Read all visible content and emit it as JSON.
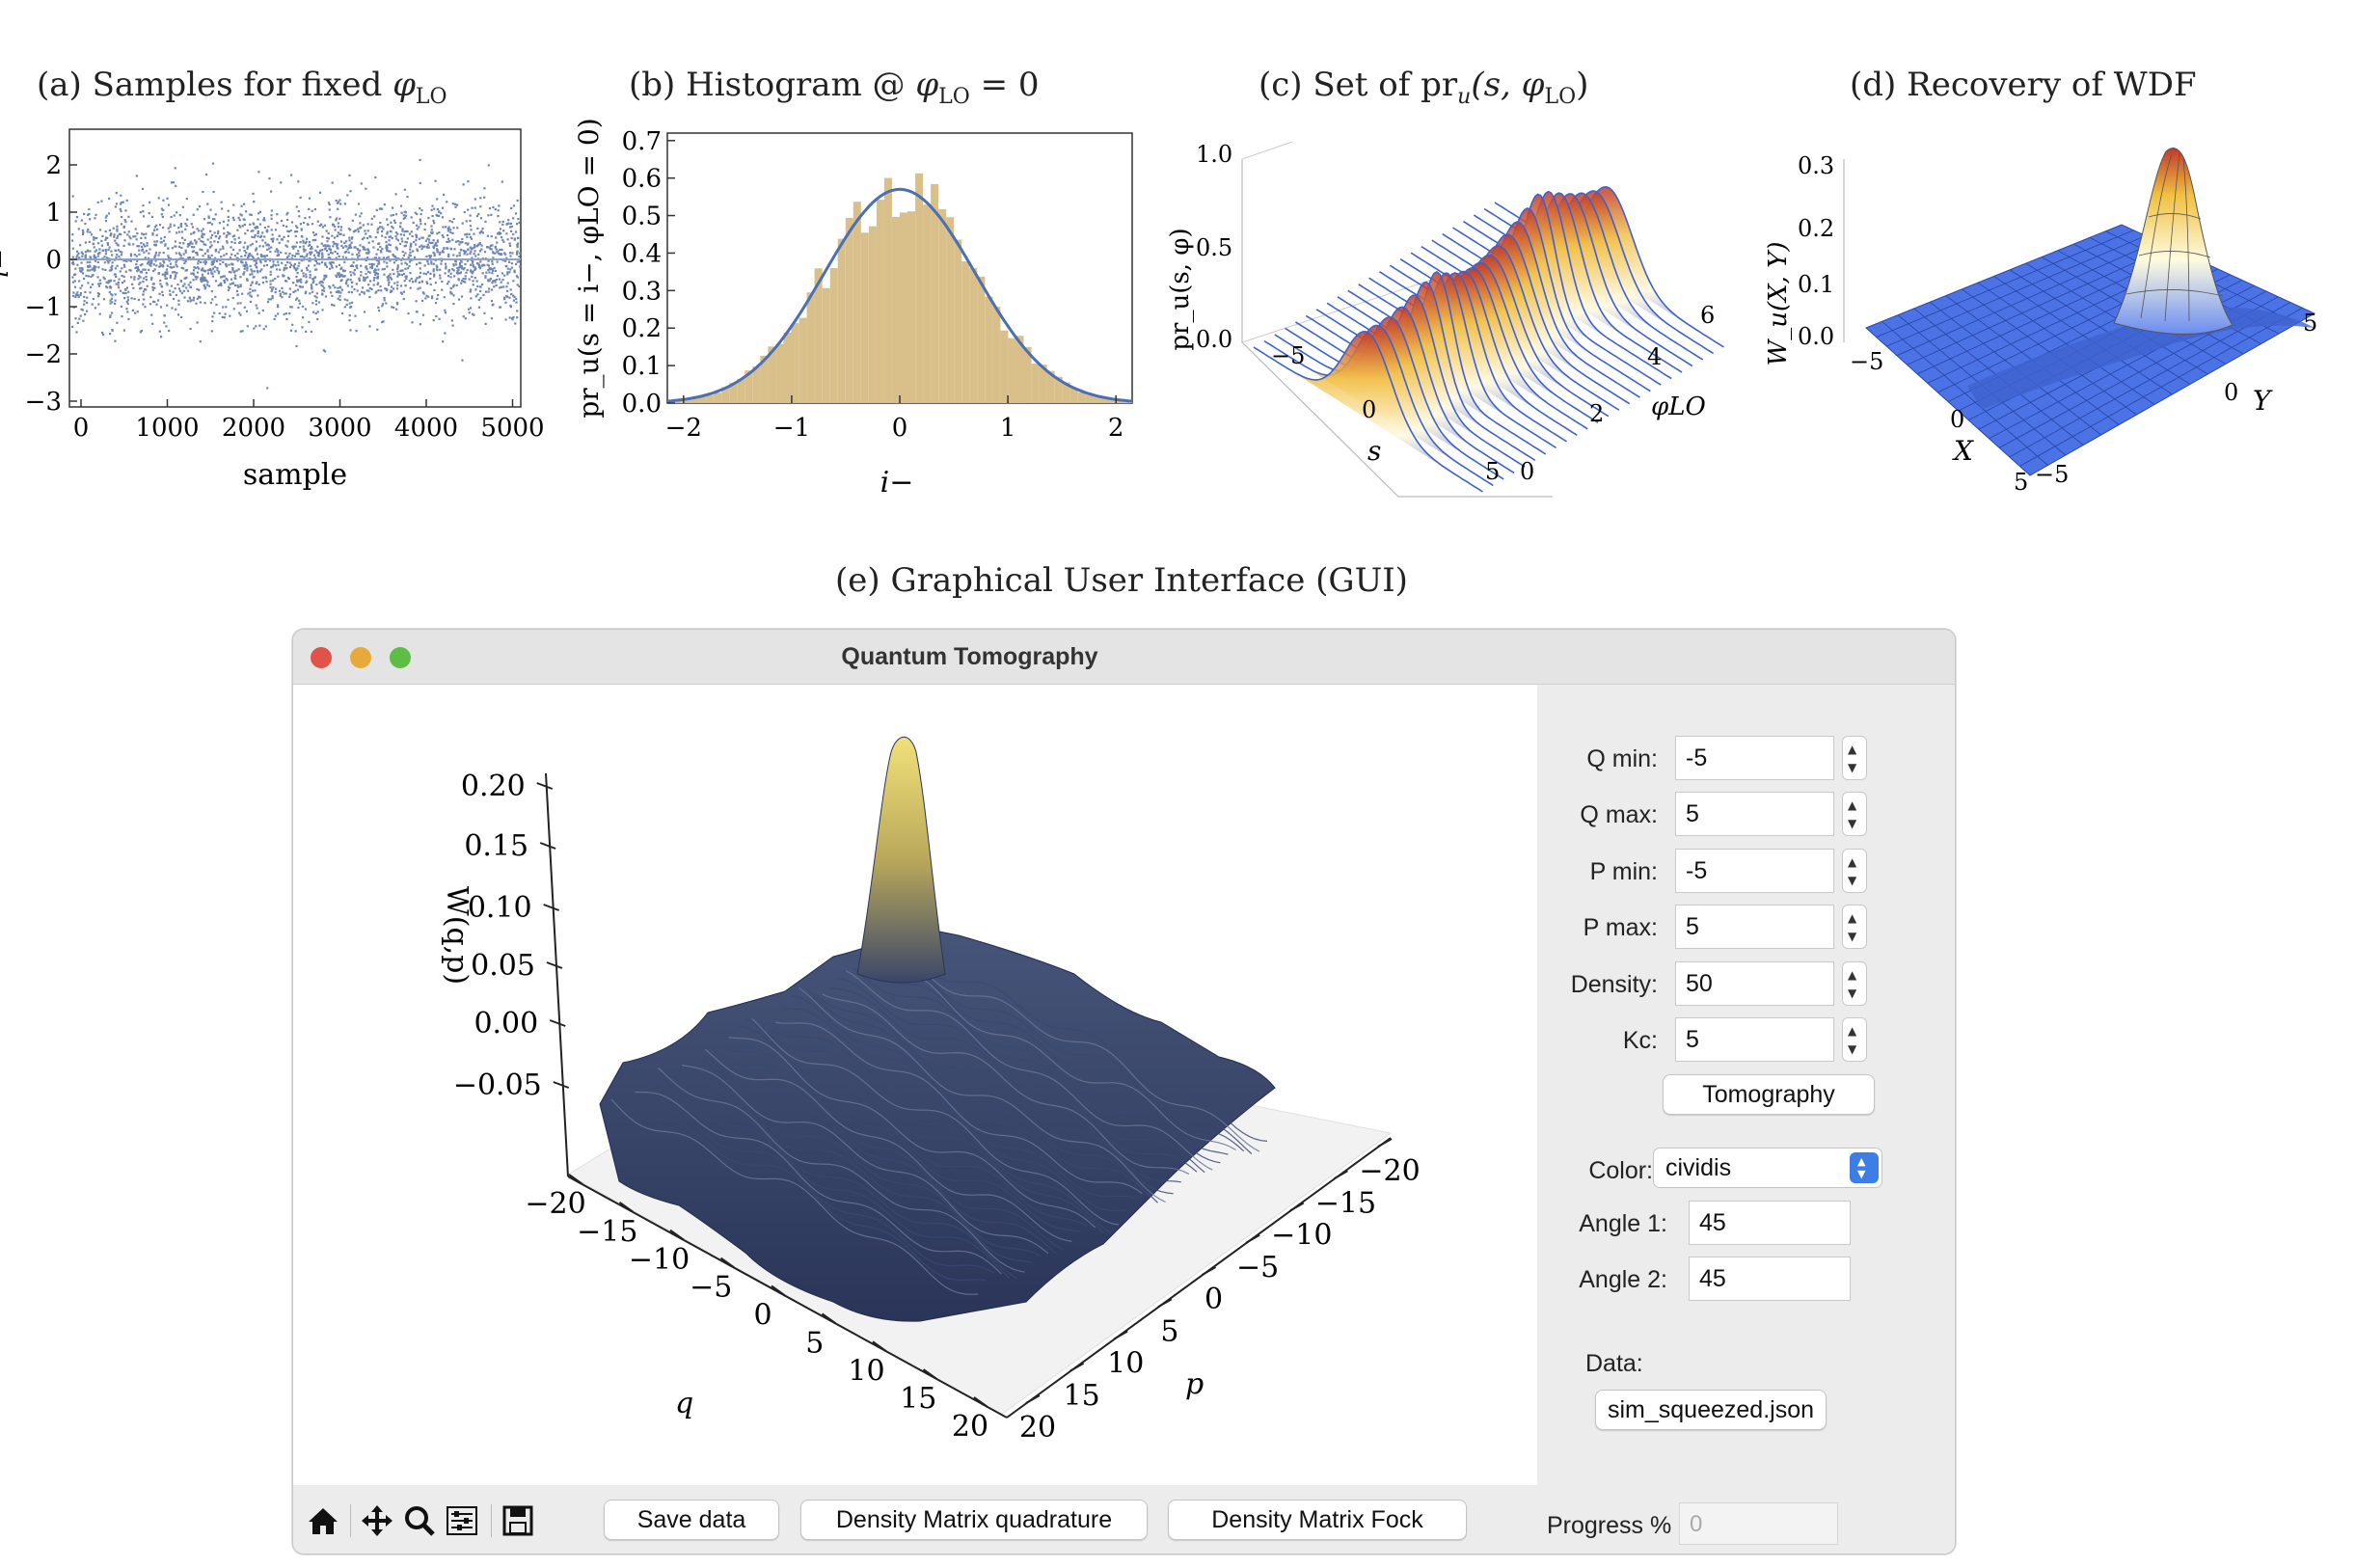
{
  "captions": {
    "a": {
      "prefix": "(a) Samples for fixed ",
      "sym": "φ",
      "sub": "LO"
    },
    "b": {
      "prefix": "(b) Histogram @ ",
      "sym": "φ",
      "sub": "LO",
      "suffix": " = 0"
    },
    "c": {
      "prefix": "(c) Set of pr",
      "usub": "u",
      "mid": "(s, ",
      "sym": "φ",
      "sub": "LO",
      "suffix": ")"
    },
    "d": {
      "text": "(d) Recovery of WDF"
    },
    "e": {
      "text": "(e) Graphical User Interface (GUI)"
    }
  },
  "panel_a": {
    "xlabel": "sample",
    "ylabel": "i−",
    "xticks": [
      "0",
      "1000",
      "2000",
      "3000",
      "4000",
      "5000"
    ],
    "yticks": [
      "2",
      "1",
      "0",
      "−1",
      "−2",
      "−3"
    ],
    "point_color": "#6f86b5"
  },
  "panel_b": {
    "xlabel": "i−",
    "ylabel": "pr_u(s = i−, φLO = 0)",
    "xticks": [
      "−2",
      "−1",
      "0",
      "1",
      "2"
    ],
    "yticks": [
      "0.7",
      "0.6",
      "0.5",
      "0.4",
      "0.3",
      "0.2",
      "0.1",
      "0.0"
    ],
    "bar_color": "#d9bf8a",
    "curve_color": "#4b6fb5"
  },
  "panel_c": {
    "ylabel": "pr_u(s, φ)",
    "xlabel": "s",
    "zlabel": "φLO",
    "zticks": [
      "1.0",
      "0.5",
      "0.0"
    ],
    "sticks": [
      "−5",
      "0",
      "5"
    ],
    "phiticks": [
      "0",
      "2",
      "4",
      "6"
    ]
  },
  "panel_d": {
    "zlabel": "W_u(X, Y)",
    "xlabel": "X",
    "ylabel": "Y",
    "zticks": [
      "0.3",
      "0.2",
      "0.1",
      "0.0"
    ],
    "xticks": [
      "−5",
      "0",
      "5"
    ],
    "yticks": [
      "−5",
      "0",
      "5"
    ]
  },
  "window": {
    "title": "Quantum Tomography",
    "lights": {
      "close": "#e0524a",
      "minimize": "#e8a93b",
      "zoom": "#5ebd45"
    },
    "plot": {
      "zlabel": "W(q,p)",
      "qlabel": "q",
      "plabel": "p",
      "zticks": [
        "0.20",
        "0.15",
        "0.10",
        "0.05",
        "0.00",
        "−0.05"
      ],
      "qticks": [
        "−20",
        "−15",
        "−10",
        "−5",
        "0",
        "5",
        "10",
        "15",
        "20"
      ],
      "pticks": [
        "20",
        "15",
        "10",
        "5",
        "0",
        "−5",
        "−10",
        "−15",
        "−20"
      ],
      "surface_color": "#34426a",
      "peak_color": "#e3d36a"
    },
    "controls": {
      "q_min": {
        "label": "Q min:",
        "value": "-5"
      },
      "q_max": {
        "label": "Q max:",
        "value": "5"
      },
      "p_min": {
        "label": "P min:",
        "value": "-5"
      },
      "p_max": {
        "label": "P max:",
        "value": "5"
      },
      "density": {
        "label": "Density:",
        "value": "50"
      },
      "kc": {
        "label": "Kc:",
        "value": "5"
      },
      "tomography_button": "Tomography",
      "color": {
        "label": "Color:",
        "value": "cividis"
      },
      "angle1": {
        "label": "Angle 1:",
        "value": "45"
      },
      "angle2": {
        "label": "Angle 2:",
        "value": "45"
      },
      "data": {
        "label": "Data:",
        "file_button": "sim_squeezed.json"
      }
    },
    "toolbar": {
      "icons": [
        "home-icon",
        "pan-icon",
        "zoom-icon",
        "configure-icon",
        "save-icon"
      ],
      "save_data": "Save data",
      "dm_quadrature": "Density Matrix quadrature",
      "dm_fock": "Density Matrix Fock",
      "progress_label": "Progress %",
      "progress_value": "0"
    }
  }
}
